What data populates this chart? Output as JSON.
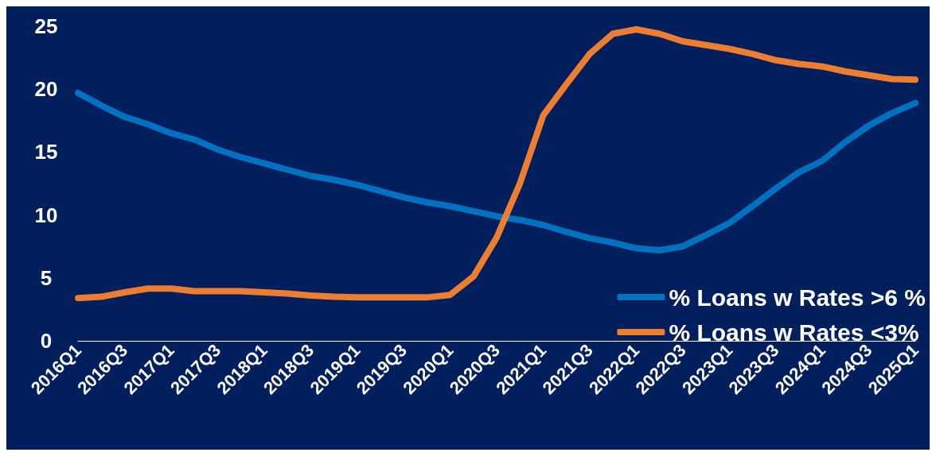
{
  "chart_data": {
    "type": "line",
    "categories": [
      "2016Q1",
      null,
      "2016Q3",
      null,
      "2017Q1",
      null,
      "2017Q3",
      null,
      "2018Q1",
      null,
      "2018Q3",
      null,
      "2019Q1",
      null,
      "2019Q3",
      null,
      "2020Q1",
      null,
      "2020Q3",
      null,
      "2021Q1",
      null,
      "2021Q3",
      null,
      "2022Q1",
      null,
      "2022Q3",
      null,
      "2023Q1",
      null,
      "2023Q3",
      null,
      "2024Q1",
      null,
      "2024Q3",
      null,
      "2025Q1"
    ],
    "series": [
      {
        "name": "% Loans w Rates >6 %",
        "color": "#0070c0",
        "values": [
          19.7,
          18.7,
          17.8,
          17.2,
          16.5,
          16.0,
          15.2,
          14.6,
          14.1,
          13.6,
          13.1,
          12.8,
          12.4,
          11.9,
          11.4,
          11.0,
          10.7,
          10.3,
          9.9,
          9.6,
          9.2,
          8.65,
          8.15,
          7.8,
          7.35,
          7.2,
          7.5,
          8.4,
          9.35,
          10.7,
          12.1,
          13.4,
          14.3,
          15.8,
          17.1,
          18.1,
          18.9
        ]
      },
      {
        "name": "% Loans w Rates <3%",
        "color": "#ed7d31",
        "values": [
          3.4,
          3.5,
          3.85,
          4.15,
          4.15,
          3.95,
          3.95,
          3.95,
          3.85,
          3.75,
          3.6,
          3.5,
          3.45,
          3.45,
          3.45,
          3.45,
          3.65,
          5.1,
          8.2,
          12.5,
          17.9,
          20.4,
          22.8,
          24.4,
          24.75,
          24.4,
          23.8,
          23.5,
          23.2,
          22.8,
          22.3,
          22.0,
          21.8,
          21.4,
          21.1,
          20.8,
          20.75
        ]
      }
    ],
    "ylim": [
      0,
      25
    ],
    "yticks": [
      0,
      5,
      10,
      15,
      20,
      25
    ],
    "grid": false,
    "legend": "bottom right",
    "marker": "none",
    "line_style": "solid"
  }
}
